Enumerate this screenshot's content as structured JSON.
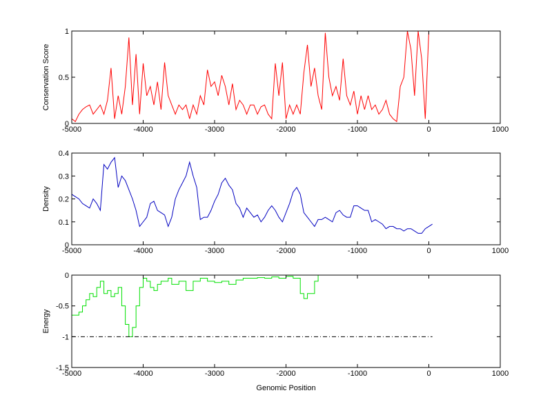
{
  "chart_data": [
    {
      "type": "line",
      "ylabel": "Conservation Score",
      "xlim": [
        -5000,
        1000
      ],
      "xticks": [
        -5000,
        -4000,
        -3000,
        -2000,
        -1000,
        0,
        1000
      ],
      "ylim": [
        0,
        1
      ],
      "yticks": [
        0,
        0.5,
        1
      ],
      "series": [
        {
          "color": "#ff0000",
          "x": [
            -5000,
            -4950,
            -4900,
            -4850,
            -4800,
            -4750,
            -4700,
            -4650,
            -4600,
            -4550,
            -4500,
            -4450,
            -4400,
            -4350,
            -4300,
            -4250,
            -4200,
            -4150,
            -4100,
            -4050,
            -4000,
            -3950,
            -3900,
            -3850,
            -3800,
            -3750,
            -3700,
            -3650,
            -3600,
            -3550,
            -3500,
            -3450,
            -3400,
            -3350,
            -3300,
            -3250,
            -3200,
            -3150,
            -3100,
            -3050,
            -3000,
            -2950,
            -2900,
            -2850,
            -2800,
            -2750,
            -2700,
            -2650,
            -2600,
            -2550,
            -2500,
            -2450,
            -2400,
            -2350,
            -2300,
            -2250,
            -2200,
            -2150,
            -2100,
            -2050,
            -2000,
            -1950,
            -1900,
            -1850,
            -1800,
            -1750,
            -1700,
            -1650,
            -1600,
            -1550,
            -1500,
            -1450,
            -1400,
            -1350,
            -1300,
            -1250,
            -1200,
            -1150,
            -1100,
            -1050,
            -1000,
            -950,
            -900,
            -850,
            -800,
            -750,
            -700,
            -650,
            -600,
            -550,
            -500,
            -450,
            -400,
            -350,
            -300,
            -250,
            -200,
            -150,
            -100,
            -50,
            0,
            50
          ],
          "values": [
            0.05,
            0.02,
            0.1,
            0.15,
            0.18,
            0.2,
            0.1,
            0.15,
            0.2,
            0.1,
            0.25,
            0.6,
            0.05,
            0.3,
            0.1,
            0.4,
            0.93,
            0.2,
            0.75,
            0.1,
            0.65,
            0.3,
            0.4,
            0.2,
            0.45,
            0.15,
            0.66,
            0.3,
            0.2,
            0.1,
            0.2,
            0.15,
            0.2,
            0.05,
            0.2,
            0.1,
            0.3,
            0.2,
            0.58,
            0.4,
            0.45,
            0.3,
            0.52,
            0.4,
            0.2,
            0.43,
            0.15,
            0.25,
            0.2,
            0.1,
            0.2,
            0.2,
            0.1,
            0.18,
            0.2,
            0.1,
            0.05,
            0.65,
            0.3,
            0.66,
            0.05,
            0.2,
            0.1,
            0.2,
            0.1,
            0.55,
            0.85,
            0.4,
            0.6,
            0.3,
            0.15,
            0.98,
            0.5,
            0.3,
            0.4,
            0.25,
            0.7,
            0.3,
            0.2,
            0.35,
            0.1,
            0.3,
            0.15,
            0.3,
            0.15,
            0.2,
            0.1,
            0.15,
            0.25,
            0.1,
            0.05,
            0.02,
            0.4,
            0.5,
            1,
            0.8,
            0.3,
            1,
            0.7,
            0.05,
            1,
            1
          ]
        }
      ]
    },
    {
      "type": "line",
      "ylabel": "Density",
      "xlim": [
        -5000,
        1000
      ],
      "xticks": [
        -5000,
        -4000,
        -3000,
        -2000,
        -1000,
        0,
        1000
      ],
      "ylim": [
        0,
        0.4
      ],
      "yticks": [
        0,
        0.1,
        0.2,
        0.3,
        0.4
      ],
      "series": [
        {
          "color": "#0000c0",
          "x": [
            -5000,
            -4950,
            -4900,
            -4850,
            -4800,
            -4750,
            -4700,
            -4650,
            -4600,
            -4550,
            -4500,
            -4450,
            -4400,
            -4350,
            -4300,
            -4250,
            -4200,
            -4150,
            -4100,
            -4050,
            -4000,
            -3950,
            -3900,
            -3850,
            -3800,
            -3750,
            -3700,
            -3650,
            -3600,
            -3550,
            -3500,
            -3450,
            -3400,
            -3350,
            -3300,
            -3250,
            -3200,
            -3150,
            -3100,
            -3050,
            -3000,
            -2950,
            -2900,
            -2850,
            -2800,
            -2750,
            -2700,
            -2650,
            -2600,
            -2550,
            -2500,
            -2450,
            -2400,
            -2350,
            -2300,
            -2250,
            -2200,
            -2150,
            -2100,
            -2050,
            -2000,
            -1950,
            -1900,
            -1850,
            -1800,
            -1750,
            -1700,
            -1650,
            -1600,
            -1550,
            -1500,
            -1450,
            -1400,
            -1350,
            -1300,
            -1250,
            -1200,
            -1150,
            -1100,
            -1050,
            -1000,
            -950,
            -900,
            -850,
            -800,
            -750,
            -700,
            -650,
            -600,
            -550,
            -500,
            -450,
            -400,
            -350,
            -300,
            -250,
            -200,
            -150,
            -100,
            -50,
            0,
            50
          ],
          "values": [
            0.22,
            0.21,
            0.2,
            0.18,
            0.17,
            0.16,
            0.2,
            0.18,
            0.15,
            0.35,
            0.33,
            0.36,
            0.38,
            0.25,
            0.3,
            0.28,
            0.24,
            0.2,
            0.15,
            0.08,
            0.1,
            0.12,
            0.18,
            0.19,
            0.15,
            0.14,
            0.13,
            0.08,
            0.12,
            0.2,
            0.24,
            0.27,
            0.3,
            0.36,
            0.3,
            0.25,
            0.11,
            0.12,
            0.12,
            0.15,
            0.19,
            0.22,
            0.27,
            0.29,
            0.26,
            0.24,
            0.18,
            0.16,
            0.12,
            0.16,
            0.14,
            0.12,
            0.13,
            0.1,
            0.12,
            0.15,
            0.17,
            0.15,
            0.12,
            0.1,
            0.14,
            0.18,
            0.23,
            0.25,
            0.22,
            0.14,
            0.12,
            0.1,
            0.08,
            0.11,
            0.11,
            0.12,
            0.11,
            0.1,
            0.14,
            0.15,
            0.13,
            0.12,
            0.12,
            0.17,
            0.17,
            0.16,
            0.15,
            0.15,
            0.1,
            0.11,
            0.1,
            0.09,
            0.07,
            0.08,
            0.08,
            0.07,
            0.07,
            0.06,
            0.07,
            0.07,
            0.06,
            0.05,
            0.05,
            0.07,
            0.08,
            0.09
          ]
        }
      ]
    },
    {
      "type": "line",
      "ylabel": "Energy",
      "xlabel": "Genomic Position",
      "xlim": [
        -5000,
        1000
      ],
      "xticks": [
        -5000,
        -4000,
        -3000,
        -2000,
        -1000,
        0,
        1000
      ],
      "ylim": [
        -1.5,
        0
      ],
      "yticks": [
        -1.5,
        -1,
        -0.5,
        0
      ],
      "series": [
        {
          "color": "#00e000",
          "drawstyle": "steps",
          "x": [
            -5000,
            -4900,
            -4850,
            -4800,
            -4750,
            -4700,
            -4650,
            -4600,
            -4550,
            -4500,
            -4450,
            -4400,
            -4350,
            -4300,
            -4250,
            -4200,
            -4150,
            -4100,
            -4050,
            -4000,
            -3950,
            -3900,
            -3850,
            -3800,
            -3750,
            -3700,
            -3650,
            -3600,
            -3500,
            -3400,
            -3300,
            -3200,
            -3100,
            -3000,
            -2900,
            -2800,
            -2700,
            -2600,
            -2500,
            -2400,
            -2300,
            -2200,
            -2100,
            -2000,
            -1900,
            -1800,
            -1750,
            -1700,
            -1600,
            -1550,
            -1300,
            -1150
          ],
          "values": [
            -0.65,
            -0.6,
            -0.5,
            -0.4,
            -0.3,
            -0.35,
            -0.2,
            -0.1,
            -0.3,
            -0.25,
            -0.35,
            -0.3,
            -0.2,
            -0.5,
            -0.8,
            -1,
            -0.85,
            -0.5,
            -0.2,
            -0.05,
            -0.1,
            -0.2,
            -0.25,
            -0.15,
            -0.1,
            -0.1,
            -0.05,
            -0.15,
            -0.1,
            -0.25,
            -0.1,
            -0.05,
            -0.1,
            -0.12,
            -0.1,
            -0.15,
            -0.08,
            -0.05,
            -0.05,
            -0.04,
            -0.05,
            -0.03,
            -0.05,
            -0.02,
            -0.05,
            -0.3,
            -0.38,
            -0.3,
            -0.1,
            0,
            0,
            0
          ]
        },
        {
          "color": "#000000",
          "dash": "dashdot",
          "x": [
            -5000,
            50
          ],
          "values": [
            -1,
            -1
          ]
        }
      ]
    }
  ]
}
